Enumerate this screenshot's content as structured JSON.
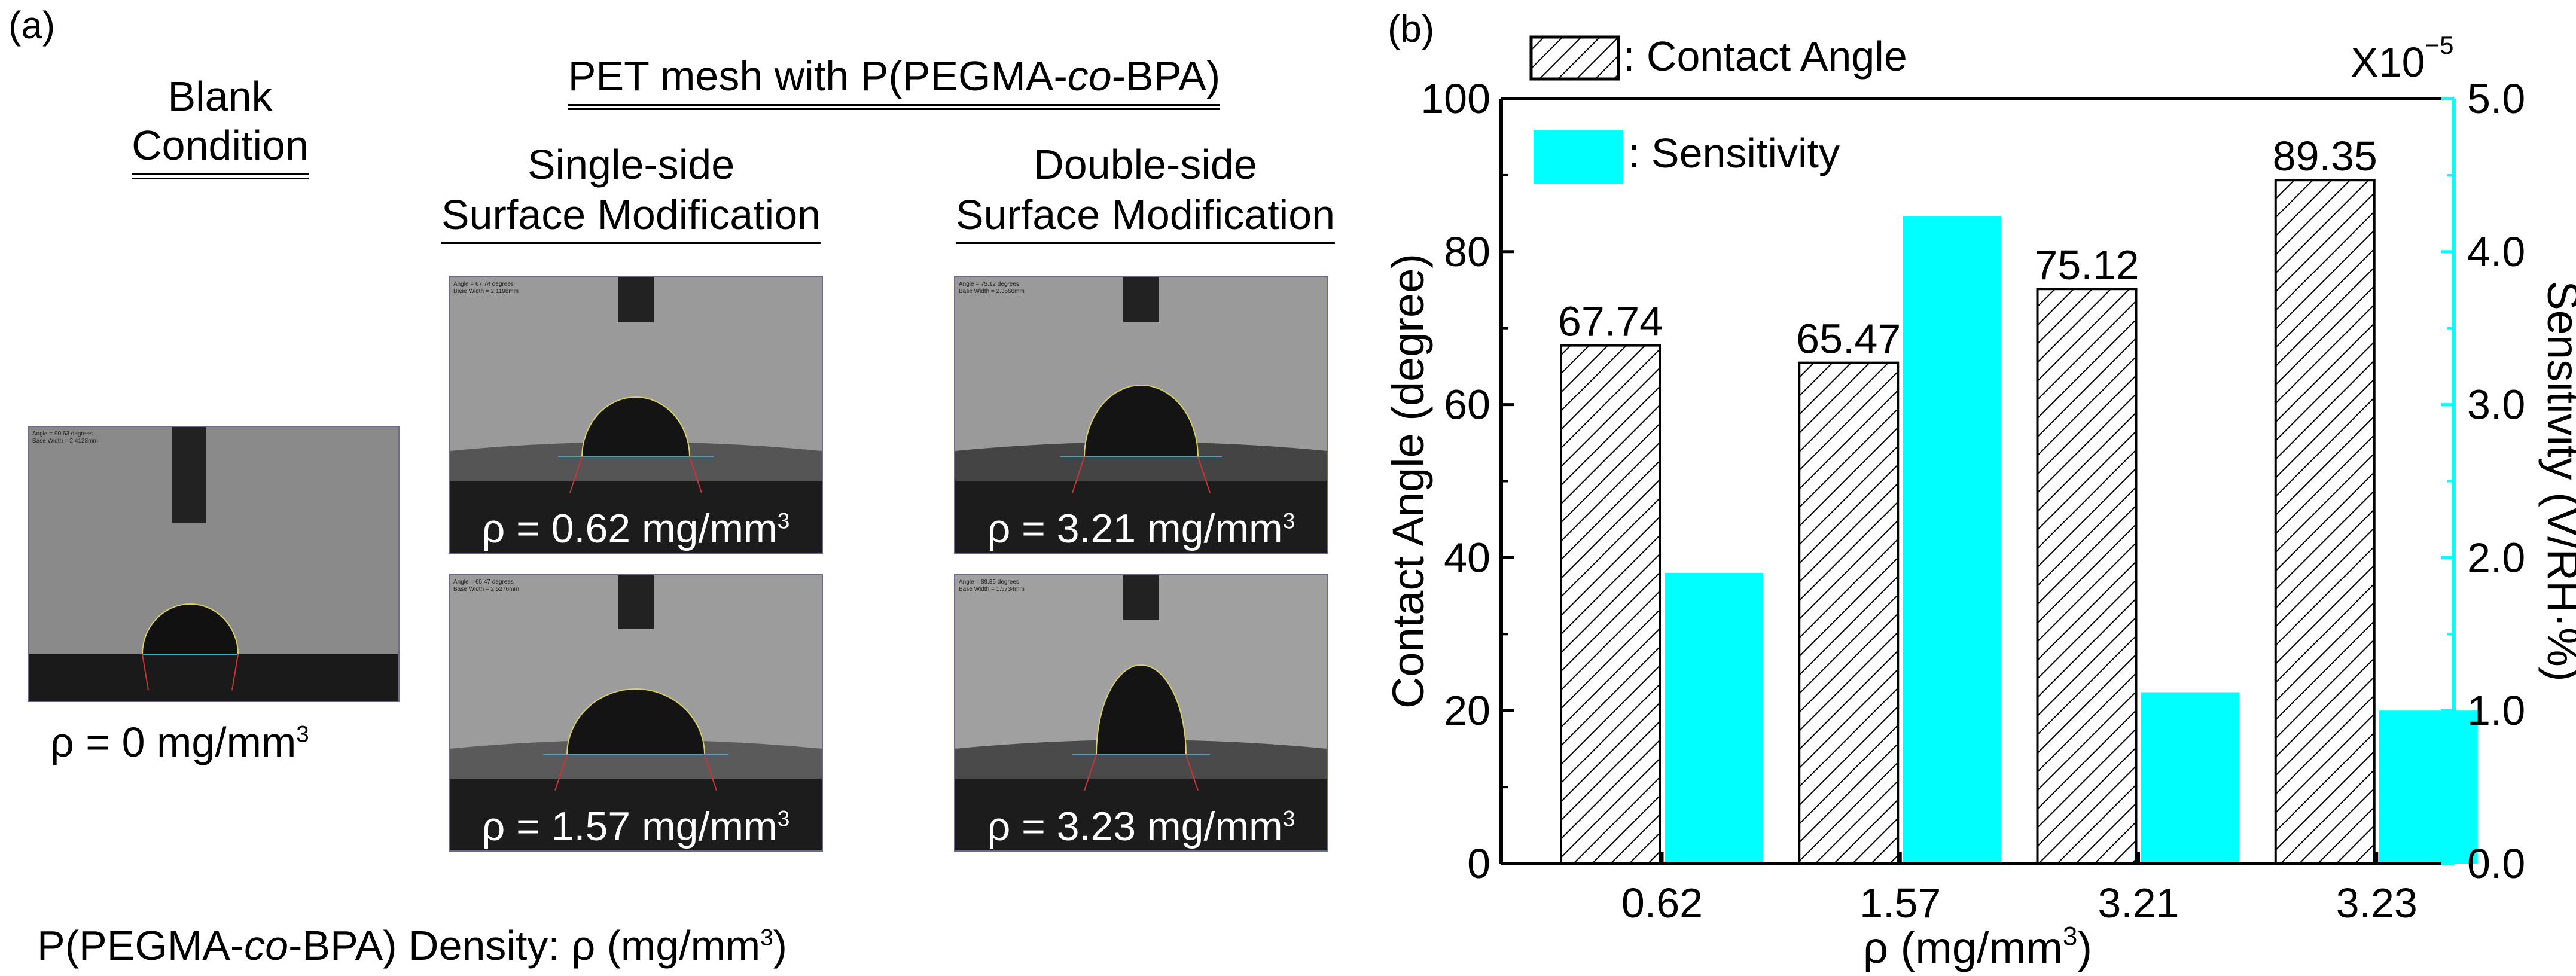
{
  "panel_a": {
    "label": "(a)",
    "blank_title_line1": "Blank",
    "blank_title_line2": "Condition",
    "group_title": "PET mesh with P(PEGMA-co-BPA)",
    "single_line1": "Single-side",
    "single_line2": "Surface Modification",
    "double_line1": "Double-side",
    "double_line2": "Surface Modification",
    "blank_rho": "ρ = 0 mg/mm",
    "blank_rho_unit_exp": "3",
    "images": [
      {
        "rho": "ρ = 0.62 mg/mm",
        "exp": "3",
        "angle_text": "Angle = 67.74 degrees",
        "width_text": "Base Width = 2.1198mm"
      },
      {
        "rho": "ρ = 3.21 mg/mm",
        "exp": "3",
        "angle_text": "Angle = 75.12 degrees",
        "width_text": "Base Width = 2.3566mm"
      },
      {
        "rho": "ρ = 1.57 mg/mm",
        "exp": "3",
        "angle_text": "Angle = 65.47 degrees",
        "width_text": "Base Width = 2.5276mm"
      },
      {
        "rho": "ρ = 3.23 mg/mm",
        "exp": "3",
        "angle_text": "Angle = 89.35 degrees",
        "width_text": "Base Width = 1.5734mm"
      }
    ],
    "blank_angle_text": "Angle = 90.63 degrees",
    "blank_width_text": "Base Width = 2.4128mm",
    "footer_prefix": "P(PEGMA-",
    "footer_italic": "co",
    "footer_suffix": "-BPA) Density: ρ (mg/mm",
    "footer_exp": "3",
    "footer_close": ")"
  },
  "chart_data": {
    "type": "bar",
    "panel_label": "(b)",
    "categories": [
      "0.62",
      "1.57",
      "3.21",
      "3.23"
    ],
    "series": [
      {
        "name": ": Contact Angle",
        "axis": "left",
        "values": [
          67.74,
          65.47,
          75.12,
          89.35
        ],
        "pattern": "hatched",
        "color": "#000000"
      },
      {
        "name": ": Sensitivity",
        "axis": "right",
        "values": [
          1.9,
          4.23,
          1.12,
          1.0
        ],
        "color": "#00ffff"
      }
    ],
    "data_labels": [
      "67.74",
      "65.47",
      "75.12",
      "89.35"
    ],
    "xlabel": "ρ (mg/mm",
    "xlabel_exp": "3",
    "xlabel_close": ")",
    "ylabel_left": "Contact Angle (degree)",
    "ylabel_right": "Sensitivity (V/RH·%)",
    "ylim_left": [
      0,
      100
    ],
    "ylim_right": [
      0.0,
      5.0
    ],
    "yticks_left": [
      "0",
      "20",
      "40",
      "60",
      "80",
      "100"
    ],
    "yticks_right": [
      "0.0",
      "1.0",
      "2.0",
      "3.0",
      "4.0",
      "5.0"
    ],
    "right_axis_multiplier": "X10",
    "right_axis_multiplier_exp": "−5",
    "right_axis_color": "#00ffff",
    "legend_position": "top-left",
    "grid": false
  }
}
